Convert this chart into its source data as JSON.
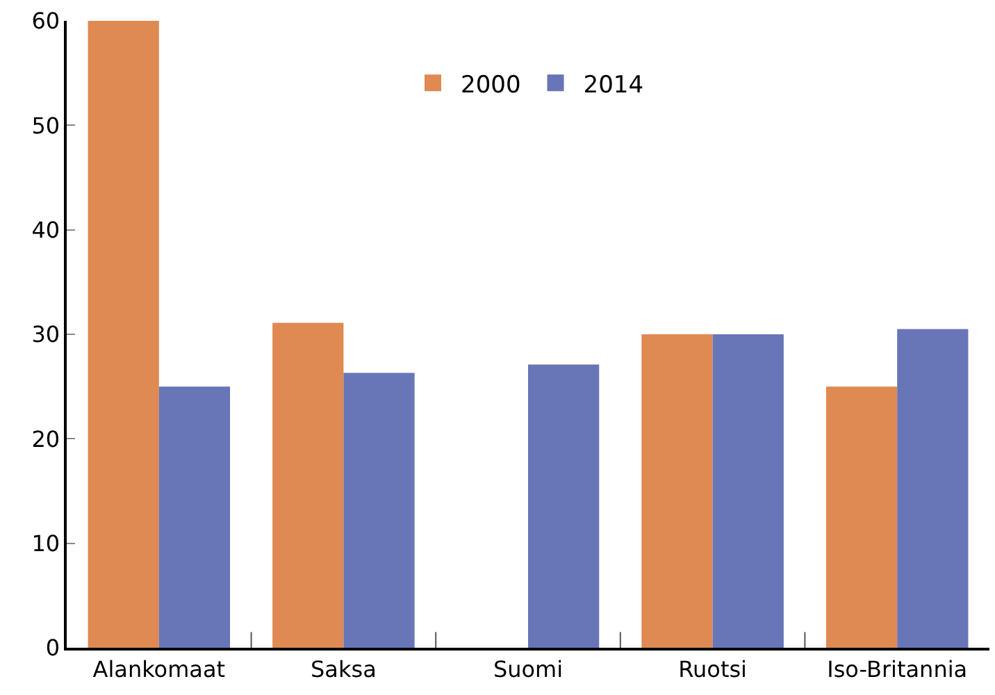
{
  "chart_data": {
    "type": "bar",
    "categories": [
      "Alankomaat",
      "Saksa",
      "Suomi",
      "Ruotsi",
      "Iso-Britannia"
    ],
    "series": [
      {
        "name": "2000",
        "color": "#df8953",
        "values": [
          60,
          31.1,
          null,
          30,
          25
        ]
      },
      {
        "name": "2014",
        "color": "#6875b7",
        "values": [
          25,
          26.3,
          27.1,
          30,
          30.5
        ]
      }
    ],
    "ylim": [
      0,
      60
    ],
    "yticks": [
      0,
      10,
      20,
      30,
      40,
      50,
      60
    ],
    "legend": "top"
  }
}
